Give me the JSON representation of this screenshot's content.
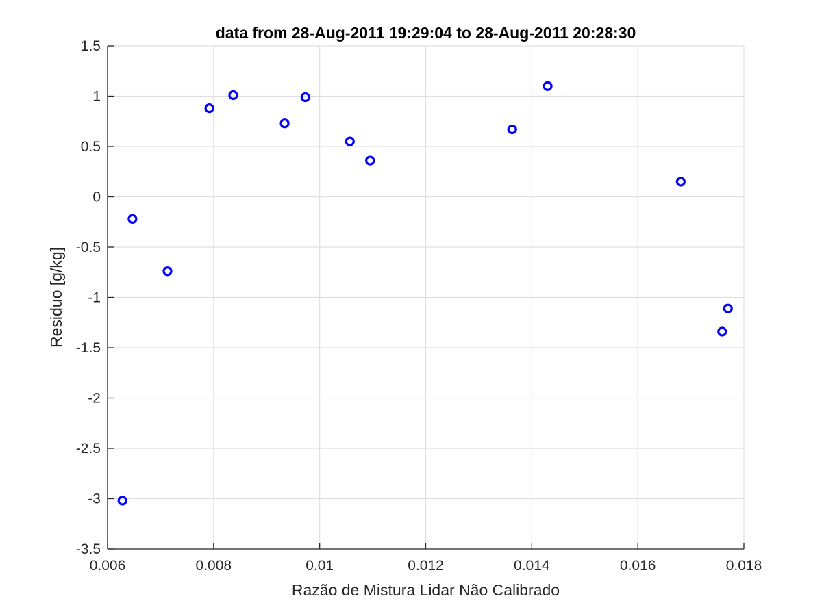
{
  "chart_data": {
    "type": "scatter",
    "title": "data from 28-Aug-2011 19:29:04 to 28-Aug-2011 20:28:30",
    "xlabel": "Razão de Mistura Lidar Não Calibrado",
    "ylabel": "Residuo [g/kg]",
    "xlim": [
      0.006,
      0.018
    ],
    "ylim": [
      -3.5,
      1.5
    ],
    "xticks": [
      0.006,
      0.008,
      0.01,
      0.012,
      0.014,
      0.016,
      0.018
    ],
    "xtick_labels": [
      "0.006",
      "0.008",
      "0.01",
      "0.012",
      "0.014",
      "0.016",
      "0.018"
    ],
    "yticks": [
      -3.5,
      -3,
      -2.5,
      -2,
      -1.5,
      -1,
      -0.5,
      0,
      0.5,
      1,
      1.5
    ],
    "ytick_labels": [
      "-3.5",
      "-3",
      "-2.5",
      "-2",
      "-1.5",
      "-1",
      "-0.5",
      "0",
      "0.5",
      "1",
      "1.5"
    ],
    "grid": true,
    "marker": "circle",
    "marker_color": "#0000ff",
    "series": [
      {
        "points": [
          {
            "x": 0.00628,
            "y": -3.02
          },
          {
            "x": 0.00647,
            "y": -0.22
          },
          {
            "x": 0.00713,
            "y": -0.74
          },
          {
            "x": 0.00792,
            "y": 0.88
          },
          {
            "x": 0.00837,
            "y": 1.01
          },
          {
            "x": 0.00934,
            "y": 0.73
          },
          {
            "x": 0.00973,
            "y": 0.99
          },
          {
            "x": 0.01057,
            "y": 0.55
          },
          {
            "x": 0.01095,
            "y": 0.36
          },
          {
            "x": 0.01363,
            "y": 0.67
          },
          {
            "x": 0.0143,
            "y": 1.1
          },
          {
            "x": 0.01681,
            "y": 0.15
          },
          {
            "x": 0.01759,
            "y": -1.34
          },
          {
            "x": 0.0177,
            "y": -1.11
          }
        ]
      }
    ]
  }
}
